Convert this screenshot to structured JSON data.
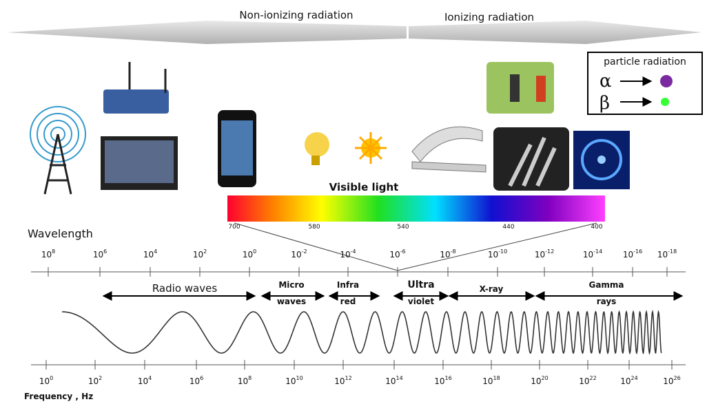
{
  "header": {
    "left": "Non-ionizing radiation",
    "right": "Ionizing radiation"
  },
  "particle_box": {
    "title": "particle radiation",
    "alpha": "α",
    "beta": "β"
  },
  "visible": {
    "title": "Visible light",
    "labels": [
      "700",
      "580",
      "540",
      "440",
      "400"
    ]
  },
  "wavelength": {
    "title": "Wavelength",
    "ticks": [
      {
        "base": "10",
        "exp": "8"
      },
      {
        "base": "10",
        "exp": "6"
      },
      {
        "base": "10",
        "exp": "4"
      },
      {
        "base": "10",
        "exp": "2"
      },
      {
        "base": "10",
        "exp": "0"
      },
      {
        "base": "10",
        "exp": "-2"
      },
      {
        "base": "10",
        "exp": "-4"
      },
      {
        "base": "10",
        "exp": "-6"
      },
      {
        "base": "10",
        "exp": "-8"
      },
      {
        "base": "10",
        "exp": "-10"
      },
      {
        "base": "10",
        "exp": "-12"
      },
      {
        "base": "10",
        "exp": "-14"
      },
      {
        "base": "10",
        "exp": "-16"
      },
      {
        "base": "10",
        "exp": "-18"
      }
    ]
  },
  "bands": [
    {
      "lines": [
        "Radio waves"
      ]
    },
    {
      "lines": [
        "Micro",
        "waves"
      ]
    },
    {
      "lines": [
        "Infra",
        "red"
      ]
    },
    {
      "lines": [
        "Ultra",
        "violet"
      ]
    },
    {
      "lines": [
        "X-ray"
      ]
    },
    {
      "lines": [
        "Gamma",
        "rays"
      ]
    }
  ],
  "frequency": {
    "title": "Frequency , Hz",
    "ticks": [
      {
        "base": "10",
        "exp": "0"
      },
      {
        "base": "10",
        "exp": "2"
      },
      {
        "base": "10",
        "exp": "4"
      },
      {
        "base": "10",
        "exp": "6"
      },
      {
        "base": "10",
        "exp": "8"
      },
      {
        "base": "10",
        "exp": "10"
      },
      {
        "base": "10",
        "exp": "12"
      },
      {
        "base": "10",
        "exp": "14"
      },
      {
        "base": "10",
        "exp": "16"
      },
      {
        "base": "10",
        "exp": "18"
      },
      {
        "base": "10",
        "exp": "20"
      },
      {
        "base": "10",
        "exp": "22"
      },
      {
        "base": "10",
        "exp": "24"
      },
      {
        "base": "10",
        "exp": "26"
      }
    ]
  }
}
